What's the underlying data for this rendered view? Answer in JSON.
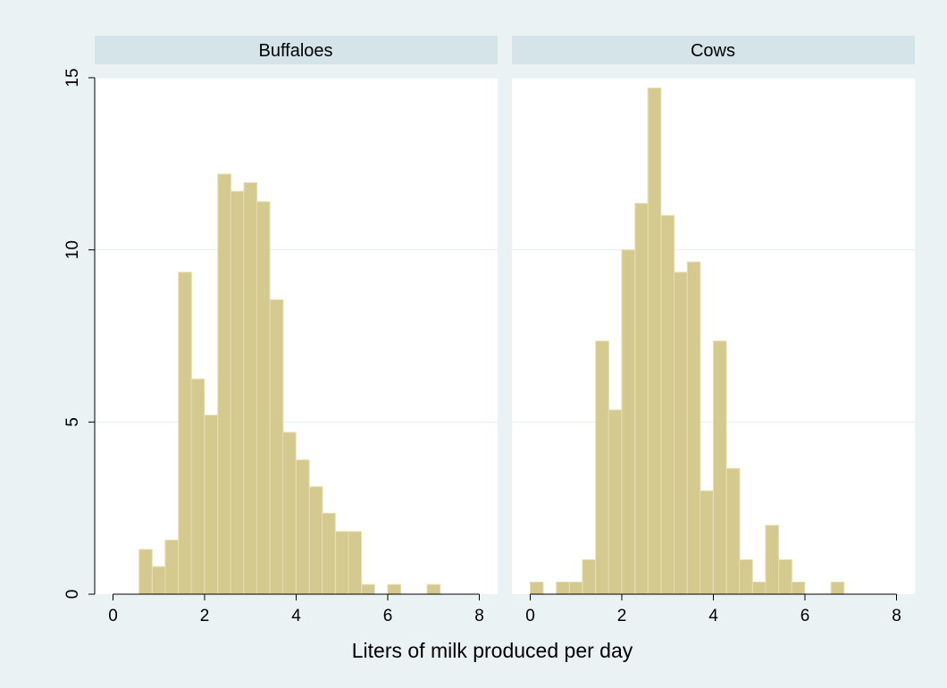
{
  "chart_data": {
    "type": "bar",
    "xlabel": "Liters of milk produced per day",
    "ylabel": "",
    "xlim": [
      -0.4,
      8.4
    ],
    "ylim": [
      0,
      15
    ],
    "x_ticks": [
      0,
      2,
      4,
      6,
      8
    ],
    "y_ticks": [
      0,
      5,
      10,
      15
    ],
    "bin_width": 0.284,
    "bar_color": "#d4c98e",
    "bar_edge": "#e6ddb0",
    "facet_header_color": "#d4e4e8",
    "gridline_color": "#e8eef0",
    "panels": [
      {
        "title": "Buffaloes",
        "bins": [
          {
            "x": 0.57,
            "y": 1.3
          },
          {
            "x": 0.86,
            "y": 0.8
          },
          {
            "x": 1.14,
            "y": 1.57
          },
          {
            "x": 1.43,
            "y": 9.35
          },
          {
            "x": 1.71,
            "y": 6.25
          },
          {
            "x": 2.0,
            "y": 5.2
          },
          {
            "x": 2.29,
            "y": 12.2
          },
          {
            "x": 2.57,
            "y": 11.7
          },
          {
            "x": 2.86,
            "y": 11.95
          },
          {
            "x": 3.14,
            "y": 11.4
          },
          {
            "x": 3.43,
            "y": 8.55
          },
          {
            "x": 3.71,
            "y": 4.7
          },
          {
            "x": 4.0,
            "y": 3.9
          },
          {
            "x": 4.29,
            "y": 3.12
          },
          {
            "x": 4.57,
            "y": 2.35
          },
          {
            "x": 4.86,
            "y": 1.82
          },
          {
            "x": 5.14,
            "y": 1.82
          },
          {
            "x": 5.43,
            "y": 0.28
          },
          {
            "x": 6.0,
            "y": 0.28
          },
          {
            "x": 6.86,
            "y": 0.28
          }
        ]
      },
      {
        "title": "Cows",
        "bins": [
          {
            "x": 0.0,
            "y": 0.35
          },
          {
            "x": 0.57,
            "y": 0.35
          },
          {
            "x": 0.86,
            "y": 0.35
          },
          {
            "x": 1.14,
            "y": 1.0
          },
          {
            "x": 1.43,
            "y": 7.35
          },
          {
            "x": 1.71,
            "y": 5.35
          },
          {
            "x": 2.0,
            "y": 10.0
          },
          {
            "x": 2.29,
            "y": 11.35
          },
          {
            "x": 2.57,
            "y": 14.7
          },
          {
            "x": 2.86,
            "y": 11.0
          },
          {
            "x": 3.14,
            "y": 9.35
          },
          {
            "x": 3.43,
            "y": 9.65
          },
          {
            "x": 3.71,
            "y": 3.0
          },
          {
            "x": 4.0,
            "y": 7.35
          },
          {
            "x": 4.29,
            "y": 3.65
          },
          {
            "x": 4.57,
            "y": 1.0
          },
          {
            "x": 4.86,
            "y": 0.35
          },
          {
            "x": 5.14,
            "y": 2.0
          },
          {
            "x": 5.43,
            "y": 1.0
          },
          {
            "x": 5.71,
            "y": 0.35
          },
          {
            "x": 6.57,
            "y": 0.35
          }
        ]
      }
    ]
  }
}
